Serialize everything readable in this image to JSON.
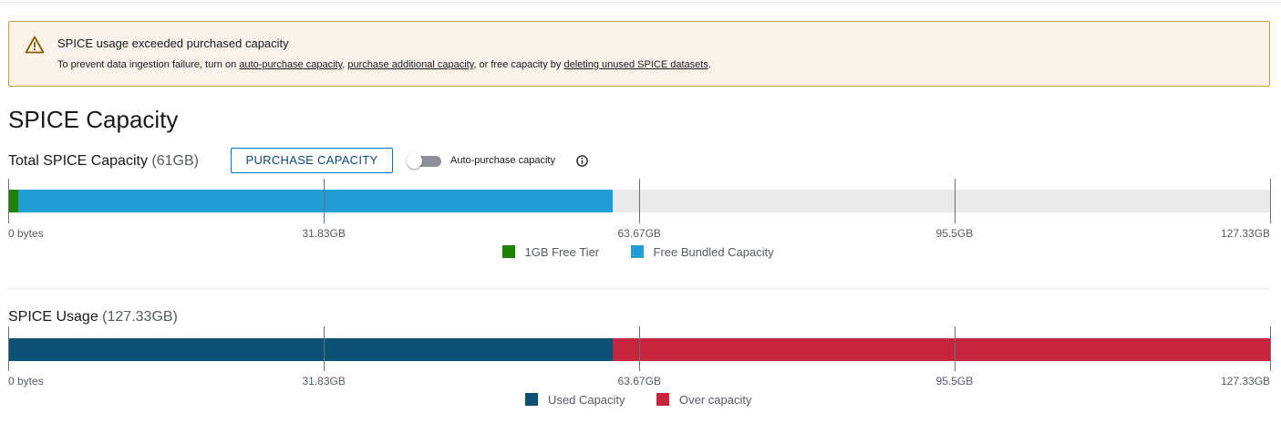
{
  "alert": {
    "icon": "warning-icon",
    "title": "SPICE usage exceeded purchased capacity",
    "body_prefix": "To prevent data ingestion failure, turn on ",
    "link_auto_purchase": "auto-purchase capacity",
    "sep_1": ", ",
    "link_purchase_additional": "purchase additional capacity",
    "sep_2": ", or free capacity by ",
    "link_delete_datasets": "deleting unused SPICE datasets",
    "body_suffix": "."
  },
  "page_title": "SPICE Capacity",
  "total_capacity": {
    "label": "Total SPICE Capacity",
    "value": "(61GB)",
    "purchase_button": "PURCHASE CAPACITY",
    "auto_purchase_label": "Auto-purchase capacity",
    "auto_purchase_enabled": false
  },
  "usage": {
    "label": "SPICE Usage",
    "value": "(127.33GB)"
  },
  "chart_data": [
    {
      "type": "bar",
      "orientation": "horizontal-stacked",
      "name": "Total SPICE Capacity",
      "x_unit": "GB",
      "xlim": [
        0,
        127.33
      ],
      "ticks": [
        0,
        31.83,
        63.67,
        95.5,
        127.33
      ],
      "tick_labels": [
        "0 bytes",
        "31.83GB",
        "63.67GB",
        "95.5GB",
        "127.33GB"
      ],
      "series": [
        {
          "name": "1GB Free Tier",
          "value": 1,
          "color": "#1d8102"
        },
        {
          "name": "Free Bundled Capacity",
          "value": 60,
          "color": "#249cd4"
        }
      ],
      "track_color": "#eaeaea",
      "legend_position": "bottom-center"
    },
    {
      "type": "bar",
      "orientation": "horizontal-stacked",
      "name": "SPICE Usage",
      "x_unit": "GB",
      "xlim": [
        0,
        127.33
      ],
      "ticks": [
        0,
        31.83,
        63.67,
        95.5,
        127.33
      ],
      "tick_labels": [
        "0 bytes",
        "31.83GB",
        "63.67GB",
        "95.5GB",
        "127.33GB"
      ],
      "series": [
        {
          "name": "Used Capacity",
          "value": 61,
          "color": "#0b5274"
        },
        {
          "name": "Over capacity",
          "value": 66.33,
          "color": "#c7253e"
        }
      ],
      "track_color": "#eaeaea",
      "legend_position": "bottom-center"
    }
  ]
}
